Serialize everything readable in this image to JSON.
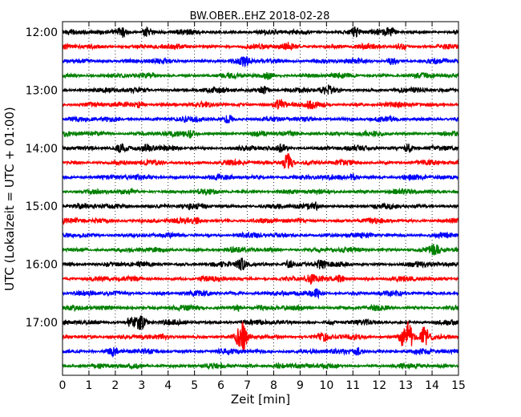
{
  "chart_data": {
    "type": "line",
    "title": "BW.OBER..EHZ 2018-02-28",
    "xlabel": "Zeit  [min]",
    "ylabel": "UTC (Lokalzeit = UTC + 01:00)",
    "xlim": [
      0,
      15
    ],
    "x_ticks": [
      "0",
      "1",
      "2",
      "3",
      "4",
      "5",
      "6",
      "7",
      "8",
      "9",
      "10",
      "11",
      "12",
      "13",
      "14",
      "15"
    ],
    "vertical_grid": "dotted at each minute",
    "y_ticks": [
      {
        "label": "12:00",
        "trace": 0
      },
      {
        "label": "13:00",
        "trace": 4
      },
      {
        "label": "14:00",
        "trace": 8
      },
      {
        "label": "15:00",
        "trace": 12
      },
      {
        "label": "16:00",
        "trace": 16
      },
      {
        "label": "17:00",
        "trace": 20
      }
    ],
    "trace_minutes": 15,
    "trace_start": "12:00",
    "colors": [
      "#000000",
      "#ff0000",
      "#0000ff",
      "#008000"
    ],
    "series": [
      {
        "start": "12:00",
        "color": "#000000",
        "events": [
          {
            "t": 2.25,
            "a": 0.9
          },
          {
            "t": 3.2,
            "a": 0.7
          },
          {
            "t": 11.1,
            "a": 0.8
          },
          {
            "t": 12.4,
            "a": 0.6
          }
        ]
      },
      {
        "start": "12:15",
        "color": "#ff0000",
        "events": [
          {
            "t": 8.6,
            "a": 0.5
          },
          {
            "t": 12.8,
            "a": 0.5
          }
        ]
      },
      {
        "start": "12:30",
        "color": "#0000ff",
        "events": [
          {
            "t": 6.9,
            "a": 0.5
          },
          {
            "t": 12.5,
            "a": 0.5
          }
        ]
      },
      {
        "start": "12:45",
        "color": "#008000",
        "events": [
          {
            "t": 7.8,
            "a": 0.5
          }
        ]
      },
      {
        "start": "13:00",
        "color": "#000000",
        "events": [
          {
            "t": 7.6,
            "a": 0.6
          },
          {
            "t": 10.0,
            "a": 0.6
          }
        ]
      },
      {
        "start": "13:15",
        "color": "#ff0000",
        "events": [
          {
            "t": 2.9,
            "a": 0.5
          },
          {
            "t": 8.2,
            "a": 0.6
          },
          {
            "t": 9.4,
            "a": 0.5
          }
        ]
      },
      {
        "start": "13:30",
        "color": "#0000ff",
        "events": [
          {
            "t": 6.3,
            "a": 0.6
          }
        ]
      },
      {
        "start": "13:45",
        "color": "#008000",
        "events": [
          {
            "t": 4.9,
            "a": 0.5
          }
        ]
      },
      {
        "start": "14:00",
        "color": "#000000",
        "events": [
          {
            "t": 2.2,
            "a": 0.8
          },
          {
            "t": 3.2,
            "a": 0.6
          },
          {
            "t": 8.3,
            "a": 0.5
          },
          {
            "t": 13.1,
            "a": 0.7
          }
        ]
      },
      {
        "start": "14:15",
        "color": "#ff0000",
        "events": [
          {
            "t": 8.55,
            "a": 1.6
          }
        ]
      },
      {
        "start": "14:30",
        "color": "#0000ff",
        "events": [
          {
            "t": 11.0,
            "a": 0.5
          }
        ]
      },
      {
        "start": "14:45",
        "color": "#008000",
        "events": []
      },
      {
        "start": "15:00",
        "color": "#000000",
        "events": [
          {
            "t": 9.6,
            "a": 0.6
          }
        ]
      },
      {
        "start": "15:15",
        "color": "#ff0000",
        "events": [
          {
            "t": 5.1,
            "a": 0.4
          }
        ]
      },
      {
        "start": "15:30",
        "color": "#0000ff",
        "events": []
      },
      {
        "start": "15:45",
        "color": "#008000",
        "events": [
          {
            "t": 14.1,
            "a": 0.6
          }
        ]
      },
      {
        "start": "16:00",
        "color": "#000000",
        "events": [
          {
            "t": 6.8,
            "a": 0.9
          },
          {
            "t": 8.6,
            "a": 0.6
          },
          {
            "t": 9.8,
            "a": 0.7
          }
        ]
      },
      {
        "start": "16:15",
        "color": "#ff0000",
        "events": [
          {
            "t": 9.4,
            "a": 0.7
          },
          {
            "t": 10.5,
            "a": 0.6
          }
        ]
      },
      {
        "start": "16:30",
        "color": "#0000ff",
        "events": [
          {
            "t": 9.6,
            "a": 0.5
          }
        ]
      },
      {
        "start": "16:45",
        "color": "#008000",
        "events": [
          {
            "t": 6.6,
            "a": 0.5
          }
        ]
      },
      {
        "start": "17:00",
        "color": "#000000",
        "events": [
          {
            "t": 2.6,
            "a": 0.8
          },
          {
            "t": 2.95,
            "a": 1.3
          }
        ]
      },
      {
        "start": "17:15",
        "color": "#ff0000",
        "events": [
          {
            "t": 6.8,
            "a": 2.4
          },
          {
            "t": 9.9,
            "a": 0.6
          },
          {
            "t": 12.9,
            "a": 1.2
          },
          {
            "t": 13.1,
            "a": 2.3
          },
          {
            "t": 13.7,
            "a": 1.5
          }
        ]
      },
      {
        "start": "17:30",
        "color": "#0000ff",
        "events": [
          {
            "t": 1.9,
            "a": 0.5
          },
          {
            "t": 11.2,
            "a": 0.6
          }
        ]
      },
      {
        "start": "17:45",
        "color": "#008000",
        "events": [
          {
            "t": 8.2,
            "a": 0.4
          }
        ]
      }
    ]
  }
}
